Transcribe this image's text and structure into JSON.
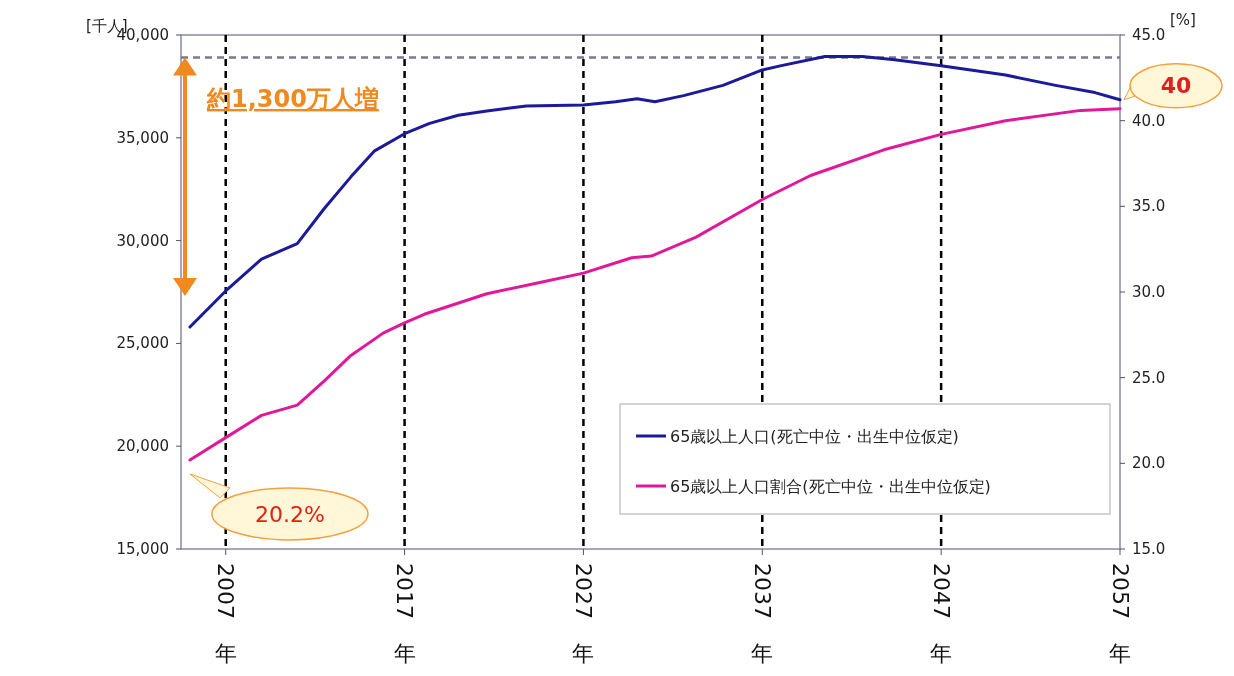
{
  "chart_data": {
    "type": "line",
    "ylabel": "[千人]",
    "y2label": "[%]",
    "xlim": [
      2004.5,
      2057
    ],
    "ylim": [
      15000,
      40000
    ],
    "y2lim": [
      15,
      45
    ],
    "xticks": [
      {
        "value": 2007,
        "label": "2007年"
      },
      {
        "value": 2017,
        "label": "2017年"
      },
      {
        "value": 2027,
        "label": "2027年"
      },
      {
        "value": 2037,
        "label": "2037年"
      },
      {
        "value": 2047,
        "label": "2047年"
      },
      {
        "value": 2057,
        "label": "2057年"
      }
    ],
    "yticks": [
      {
        "value": 15000,
        "label": "15,000"
      },
      {
        "value": 20000,
        "label": "20,000"
      },
      {
        "value": 25000,
        "label": "25,000"
      },
      {
        "value": 30000,
        "label": "30,000"
      },
      {
        "value": 35000,
        "label": "35,000"
      },
      {
        "value": 40000,
        "label": "40,000"
      }
    ],
    "y2ticks": [
      {
        "value": 15,
        "label": "15.0"
      },
      {
        "value": 20,
        "label": "20.0"
      },
      {
        "value": 25,
        "label": "25.0"
      },
      {
        "value": 30,
        "label": "30.0"
      },
      {
        "value": 35,
        "label": "35.0"
      },
      {
        "value": 40,
        "label": "40.0"
      },
      {
        "value": 45,
        "label": "45.0"
      }
    ],
    "series": [
      {
        "name": "65歳以上人口(死亡中位・出生中位仮定)",
        "color": "#1a1a9a",
        "x": [
          2005,
          2007,
          2009,
          2011,
          2012.5,
          2014,
          2015.3,
          2017,
          2018.4,
          2020,
          2021.6,
          2023.8,
          2027,
          2028.8,
          2030,
          2031,
          2032.6,
          2034.8,
          2037,
          2038,
          2040.5,
          2042.6,
          2044.4,
          2047,
          2050.6,
          2053.4,
          2055.6,
          2057
        ],
        "values": [
          25800,
          27550,
          29100,
          29850,
          31550,
          33100,
          34350,
          35200,
          35700,
          36100,
          36300,
          36550,
          36600,
          36750,
          36900,
          36750,
          37050,
          37550,
          38300,
          38500,
          38950,
          38950,
          38800,
          38500,
          38050,
          37550,
          37200,
          36850
        ]
      },
      {
        "name": "65歳以上人口割合(死亡中位・出生中位仮定)",
        "color": "#e0189a",
        "axis": "y2",
        "x": [
          2005,
          2007,
          2009,
          2011,
          2012.5,
          2014,
          2015.8,
          2017,
          2018.1,
          2021.6,
          2024.3,
          2027,
          2029.7,
          2030.8,
          2033.3,
          2037,
          2039.7,
          2043.8,
          2047,
          2050.6,
          2054.8,
          2057
        ],
        "values": [
          20.2,
          21.5,
          22.8,
          23.4,
          24.8,
          26.3,
          27.6,
          28.2,
          28.7,
          29.9,
          30.5,
          31.1,
          32.0,
          32.1,
          33.2,
          35.4,
          36.8,
          38.3,
          39.2,
          40.0,
          40.6,
          40.7
        ]
      }
    ],
    "ref_lines": [
      {
        "axis": "x",
        "value": 2007,
        "color": "#000000",
        "line_style": "dashed"
      },
      {
        "axis": "x",
        "value": 2017,
        "color": "#000000",
        "line_style": "dashed"
      },
      {
        "axis": "x",
        "value": 2027,
        "color": "#000000",
        "line_style": "dashed"
      },
      {
        "axis": "x",
        "value": 2037,
        "color": "#000000",
        "line_style": "dashed"
      },
      {
        "axis": "x",
        "value": 2047,
        "color": "#000000",
        "line_style": "dashed"
      },
      {
        "axis": "y",
        "value": 38900,
        "color": "#7a7890",
        "line_style": "dashed"
      }
    ],
    "annotations": [
      "約1,300万人増",
      "20.2%",
      "40"
    ],
    "legend": "bottom right",
    "grid": false
  }
}
